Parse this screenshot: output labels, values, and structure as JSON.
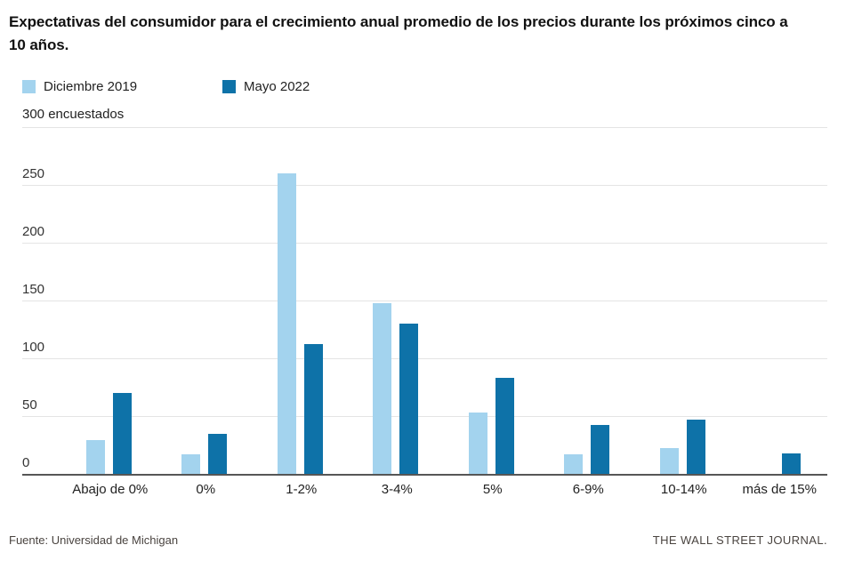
{
  "header": {
    "title": "Expectativas del consumidor para el crecimiento anual promedio de los precios durante los próximos cinco a 10 años."
  },
  "legend": [
    {
      "label": "Diciembre 2019",
      "color": "#a3d3ee"
    },
    {
      "label": "Mayo 2022",
      "color": "#0e72a8"
    }
  ],
  "chart_data": {
    "type": "bar",
    "categories": [
      "Abajo de 0%",
      "0%",
      "1-2%",
      "3-4%",
      "5%",
      "6-9%",
      "10-14%",
      "más de 15%"
    ],
    "series": [
      {
        "name": "Diciembre 2019",
        "color": "#a3d3ee",
        "values": [
          29,
          17,
          260,
          148,
          53,
          17,
          22,
          0
        ]
      },
      {
        "name": "Mayo 2022",
        "color": "#0e72a8",
        "values": [
          70,
          35,
          112,
          130,
          83,
          42,
          47,
          18
        ]
      }
    ],
    "ylabel": "300 encuestados",
    "ylim": [
      0,
      300
    ],
    "yticks": [
      0,
      50,
      100,
      150,
      200,
      250,
      300
    ],
    "grid": true,
    "legend_position": "top-left"
  },
  "footer": {
    "source": "Fuente: Universidad de Michigan",
    "credit": "THE WALL STREET JOURNAL."
  }
}
